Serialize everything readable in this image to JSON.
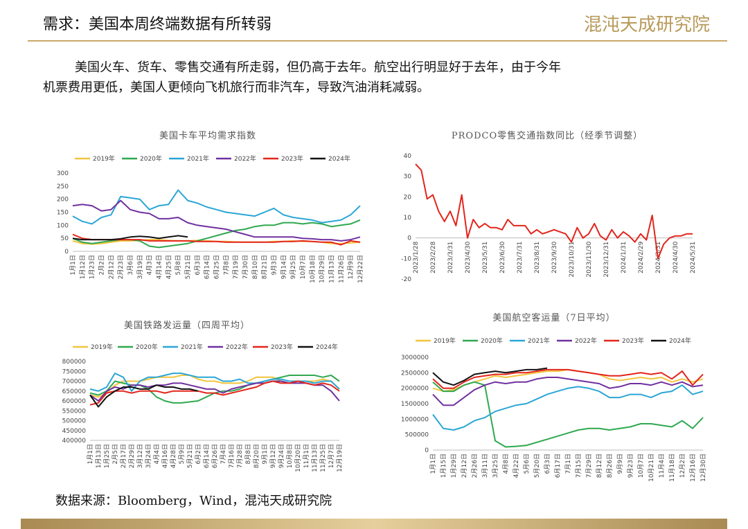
{
  "header": {
    "title": "需求：美国本周终端数据有所转弱",
    "logo": "混沌天成研究院"
  },
  "body": {
    "lines": [
      "美国火车、货车、零售交通有所走弱，但仍高于去年。航空出行明显好于去年，由于今年",
      "机票费用更低，美国人更倾向飞机旅行而非汽车，导致汽油消耗减弱。"
    ]
  },
  "source": "数据来源：Bloomberg，Wind，混沌天成研究院",
  "chart_data": [
    {
      "type": "line",
      "title": "美国卡车平均需求指数",
      "categories": [
        "1月1日",
        "1月12日",
        "1月23日",
        "2月2日",
        "2月12日",
        "2月23日",
        "3月6日",
        "3月19日",
        "4月3日",
        "4月14日",
        "4月25日",
        "5月8日",
        "5月21日",
        "6月3日",
        "6月14日",
        "6月25日",
        "7月8日",
        "7月19日",
        "7月30日",
        "8月10日",
        "8月21日",
        "9月3日",
        "9月14日",
        "9月25日",
        "10月7日",
        "10月18日",
        "10月29日",
        "11月13日",
        "11月26日",
        "12月9日",
        "12月22日"
      ],
      "series": [
        {
          "name": "2019年",
          "color": "#f2c43d",
          "values": [
            40,
            30,
            28,
            30,
            35,
            40,
            40,
            42,
            45,
            45,
            42,
            40,
            40,
            42,
            40,
            38,
            38,
            36,
            35,
            35,
            35,
            38,
            38,
            40,
            38,
            38,
            35,
            30,
            30,
            32,
            35
          ]
        },
        {
          "name": "2020年",
          "color": "#2fa84f",
          "values": [
            50,
            35,
            30,
            35,
            40,
            45,
            45,
            40,
            20,
            15,
            20,
            25,
            30,
            40,
            50,
            60,
            70,
            80,
            85,
            95,
            100,
            100,
            110,
            110,
            105,
            110,
            105,
            95,
            100,
            105,
            120
          ]
        },
        {
          "name": "2021年",
          "color": "#2aa6d6",
          "values": [
            135,
            115,
            105,
            130,
            140,
            210,
            205,
            200,
            160,
            175,
            180,
            235,
            195,
            185,
            170,
            160,
            150,
            145,
            140,
            135,
            150,
            165,
            140,
            130,
            125,
            120,
            110,
            115,
            120,
            140,
            175
          ]
        },
        {
          "name": "2022年",
          "color": "#7030a0",
          "values": [
            175,
            180,
            175,
            155,
            160,
            195,
            160,
            150,
            145,
            125,
            125,
            130,
            110,
            100,
            95,
            90,
            85,
            75,
            65,
            55,
            55,
            55,
            55,
            55,
            50,
            48,
            45,
            45,
            40,
            45,
            55
          ]
        },
        {
          "name": "2023年",
          "color": "#e3241b",
          "values": [
            65,
            50,
            45,
            45,
            45,
            45,
            45,
            45,
            40,
            40,
            40,
            40,
            40,
            38,
            38,
            38,
            35,
            35,
            35,
            35,
            35,
            35,
            38,
            38,
            40,
            38,
            35,
            35,
            25,
            40,
            35
          ]
        },
        {
          "name": "2024年",
          "color": "#111111",
          "values": [
            50,
            45,
            45,
            45,
            45,
            48,
            55,
            58,
            55,
            50,
            55,
            60,
            55,
            null,
            null,
            null,
            null,
            null,
            null,
            null,
            null,
            null,
            null,
            null,
            null,
            null,
            null,
            null,
            null,
            null,
            null
          ]
        }
      ],
      "ylim": [
        0,
        300
      ],
      "yticks": [
        0,
        50,
        100,
        150,
        200,
        250,
        300
      ],
      "grid": false,
      "legend": "top"
    },
    {
      "type": "line",
      "title": "PRODCO零售交通指数同比（经季节调整）",
      "categories": [
        "2023/1/28",
        null,
        null,
        "2023/2/28",
        null,
        null,
        "2023/3/31",
        null,
        null,
        "2023/4/30",
        null,
        null,
        "2023/5/31",
        null,
        null,
        "2023/6/30",
        null,
        null,
        "2023/7/31",
        null,
        null,
        "2023/8/31",
        null,
        null,
        "2023/9/30",
        null,
        null,
        "2023/10/31",
        null,
        null,
        "2023/11/30",
        null,
        null,
        "2023/12/31",
        null,
        null,
        "2024/1/31",
        null,
        null,
        "2024/2/29",
        null,
        null,
        "2024/3/31",
        null,
        null,
        "2024/4/30",
        null,
        null,
        "2024/5/31"
      ],
      "values": [
        36,
        33,
        19,
        21,
        13,
        8,
        13,
        6,
        21,
        0,
        9,
        5,
        7,
        5,
        5,
        4,
        9,
        6,
        6,
        6,
        2,
        4,
        2,
        3,
        4,
        3,
        2,
        -2,
        5,
        0,
        2,
        7,
        1,
        -1,
        4,
        0,
        3,
        1,
        -2,
        2,
        -1,
        11,
        -10,
        -3,
        0,
        1,
        1,
        2,
        2
      ],
      "color": "#e3241b",
      "ylim": [
        -20,
        40
      ],
      "yticks": [
        -20,
        -10,
        0,
        10,
        20,
        30,
        40
      ],
      "grid": false
    },
    {
      "type": "line",
      "title": "美国铁路发运量（四周平均）",
      "categories": [
        "1月1日",
        "1月13日",
        "1月25日",
        "2月5日",
        "2月17日",
        "2月29日",
        "3月12日",
        "3月24日",
        "4月4日",
        "4月16日",
        "4月28日",
        "5月9日",
        "5月21日",
        "6月2日",
        "6月14日",
        "6月26日",
        "7月4日",
        "7月16日",
        "7月28日",
        "8月8日",
        "8月20日",
        "9月1日",
        "9月12日",
        "9月24日",
        "10月8日",
        "10月20日",
        "11月1日",
        "11月13日",
        "11月25日",
        "12月7日",
        "12月19日"
      ],
      "series": [
        {
          "name": "2019年",
          "color": "#f2c43d",
          "values": [
            630000,
            620000,
            640000,
            680000,
            700000,
            700000,
            700000,
            710000,
            720000,
            720000,
            720000,
            730000,
            730000,
            710000,
            700000,
            700000,
            690000,
            690000,
            690000,
            700000,
            720000,
            720000,
            720000,
            700000,
            690000,
            700000,
            700000,
            700000,
            710000,
            700000,
            660000
          ]
        },
        {
          "name": "2020年",
          "color": "#2fa84f",
          "values": [
            640000,
            630000,
            650000,
            700000,
            690000,
            680000,
            680000,
            660000,
            620000,
            600000,
            590000,
            590000,
            595000,
            600000,
            620000,
            640000,
            650000,
            650000,
            660000,
            680000,
            690000,
            700000,
            710000,
            720000,
            730000,
            730000,
            730000,
            730000,
            720000,
            730000,
            700000
          ]
        },
        {
          "name": "2021年",
          "color": "#2aa6d6",
          "values": [
            660000,
            650000,
            670000,
            740000,
            720000,
            650000,
            700000,
            720000,
            720000,
            730000,
            740000,
            740000,
            730000,
            720000,
            720000,
            720000,
            700000,
            700000,
            710000,
            690000,
            690000,
            700000,
            710000,
            710000,
            700000,
            700000,
            700000,
            690000,
            700000,
            700000,
            660000
          ]
        },
        {
          "name": "2022年",
          "color": "#7030a0",
          "values": [
            630000,
            600000,
            650000,
            670000,
            660000,
            680000,
            680000,
            670000,
            680000,
            680000,
            690000,
            690000,
            680000,
            670000,
            660000,
            660000,
            640000,
            660000,
            670000,
            680000,
            690000,
            690000,
            700000,
            700000,
            690000,
            690000,
            690000,
            680000,
            680000,
            650000,
            600000
          ]
        },
        {
          "name": "2023年",
          "color": "#e3241b",
          "values": [
            580000,
            590000,
            640000,
            650000,
            650000,
            640000,
            650000,
            650000,
            650000,
            640000,
            650000,
            650000,
            650000,
            650000,
            640000,
            640000,
            630000,
            640000,
            650000,
            660000,
            670000,
            690000,
            700000,
            690000,
            690000,
            700000,
            690000,
            680000,
            690000,
            680000,
            650000
          ]
        },
        {
          "name": "2024年",
          "color": "#111111",
          "values": [
            630000,
            570000,
            620000,
            650000,
            670000,
            670000,
            660000,
            660000,
            680000,
            670000,
            670000,
            660000,
            660000,
            650000,
            null,
            null,
            null,
            null,
            null,
            null,
            null,
            null,
            null,
            null,
            null,
            null,
            null,
            null,
            null,
            null,
            null
          ]
        }
      ],
      "ylim": [
        400000,
        800000
      ],
      "yticks": [
        400000,
        450000,
        500000,
        550000,
        600000,
        650000,
        700000,
        750000,
        800000
      ],
      "grid": false,
      "legend": "top"
    },
    {
      "type": "line",
      "title": "美国航空客运量（7日平均）",
      "categories": [
        "1月1日",
        "1月15日",
        "1月29日",
        "2月12日",
        "2月26日",
        "3月11日",
        "3月25日",
        "4月8日",
        "4月22日",
        "5月6日",
        "5月20日",
        "6月3日",
        "6月17日",
        "7月1日",
        "7月15日",
        "7月29日",
        "8月12日",
        "8月26日",
        "9月9日",
        "9月23日",
        "10月7日",
        "10月21日",
        "11月4日",
        "11月18日",
        "12月2日",
        "12月16日",
        "12月30日"
      ],
      "series": [
        {
          "name": "2019年",
          "color": "#f2c43d",
          "values": [
            2000000,
            1900000,
            1950000,
            2100000,
            2200000,
            2300000,
            2400000,
            2350000,
            2400000,
            2450000,
            2500000,
            2550000,
            2550000,
            2600000,
            2550000,
            2500000,
            2450000,
            2300000,
            2250000,
            2300000,
            2350000,
            2300000,
            2350000,
            2200000,
            2300000,
            2200000,
            2300000
          ]
        },
        {
          "name": "2020年",
          "color": "#2fa84f",
          "values": [
            2200000,
            1900000,
            1900000,
            2100000,
            2200000,
            2100000,
            300000,
            100000,
            120000,
            150000,
            250000,
            350000,
            450000,
            550000,
            650000,
            700000,
            700000,
            650000,
            700000,
            750000,
            850000,
            850000,
            800000,
            750000,
            950000,
            700000,
            1050000
          ]
        },
        {
          "name": "2021年",
          "color": "#2aa6d6",
          "values": [
            1150000,
            700000,
            650000,
            750000,
            950000,
            1050000,
            1250000,
            1350000,
            1450000,
            1500000,
            1650000,
            1800000,
            1900000,
            2000000,
            2050000,
            2000000,
            1900000,
            1700000,
            1700000,
            1800000,
            1800000,
            1700000,
            1850000,
            1900000,
            2100000,
            1800000,
            1900000
          ]
        },
        {
          "name": "2022年",
          "color": "#7030a0",
          "values": [
            1800000,
            1450000,
            1450000,
            1700000,
            1950000,
            2100000,
            2200000,
            2150000,
            2200000,
            2200000,
            2300000,
            2350000,
            2350000,
            2300000,
            2250000,
            2200000,
            2150000,
            2000000,
            2050000,
            2150000,
            2150000,
            2100000,
            2200000,
            2100000,
            2200000,
            2050000,
            2100000
          ]
        },
        {
          "name": "2023年",
          "color": "#e3241b",
          "values": [
            2300000,
            2000000,
            2000000,
            2200000,
            2350000,
            2400000,
            2450000,
            2450000,
            2500000,
            2500000,
            2550000,
            2600000,
            2600000,
            2600000,
            2550000,
            2500000,
            2450000,
            2400000,
            2400000,
            2450000,
            2500000,
            2450000,
            2500000,
            2300000,
            2550000,
            2100000,
            2450000
          ]
        },
        {
          "name": "2024年",
          "color": "#111111",
          "values": [
            2500000,
            2200000,
            2100000,
            2250000,
            2450000,
            2500000,
            2550000,
            2500000,
            2550000,
            2600000,
            2600000,
            2650000,
            null,
            null,
            null,
            null,
            null,
            null,
            null,
            null,
            null,
            null,
            null,
            null,
            null,
            null,
            null
          ]
        }
      ],
      "ylim": [
        0,
        3000000
      ],
      "yticks": [
        0,
        500000,
        1000000,
        1500000,
        2000000,
        2500000,
        3000000
      ],
      "grid": false,
      "legend": "top"
    }
  ]
}
